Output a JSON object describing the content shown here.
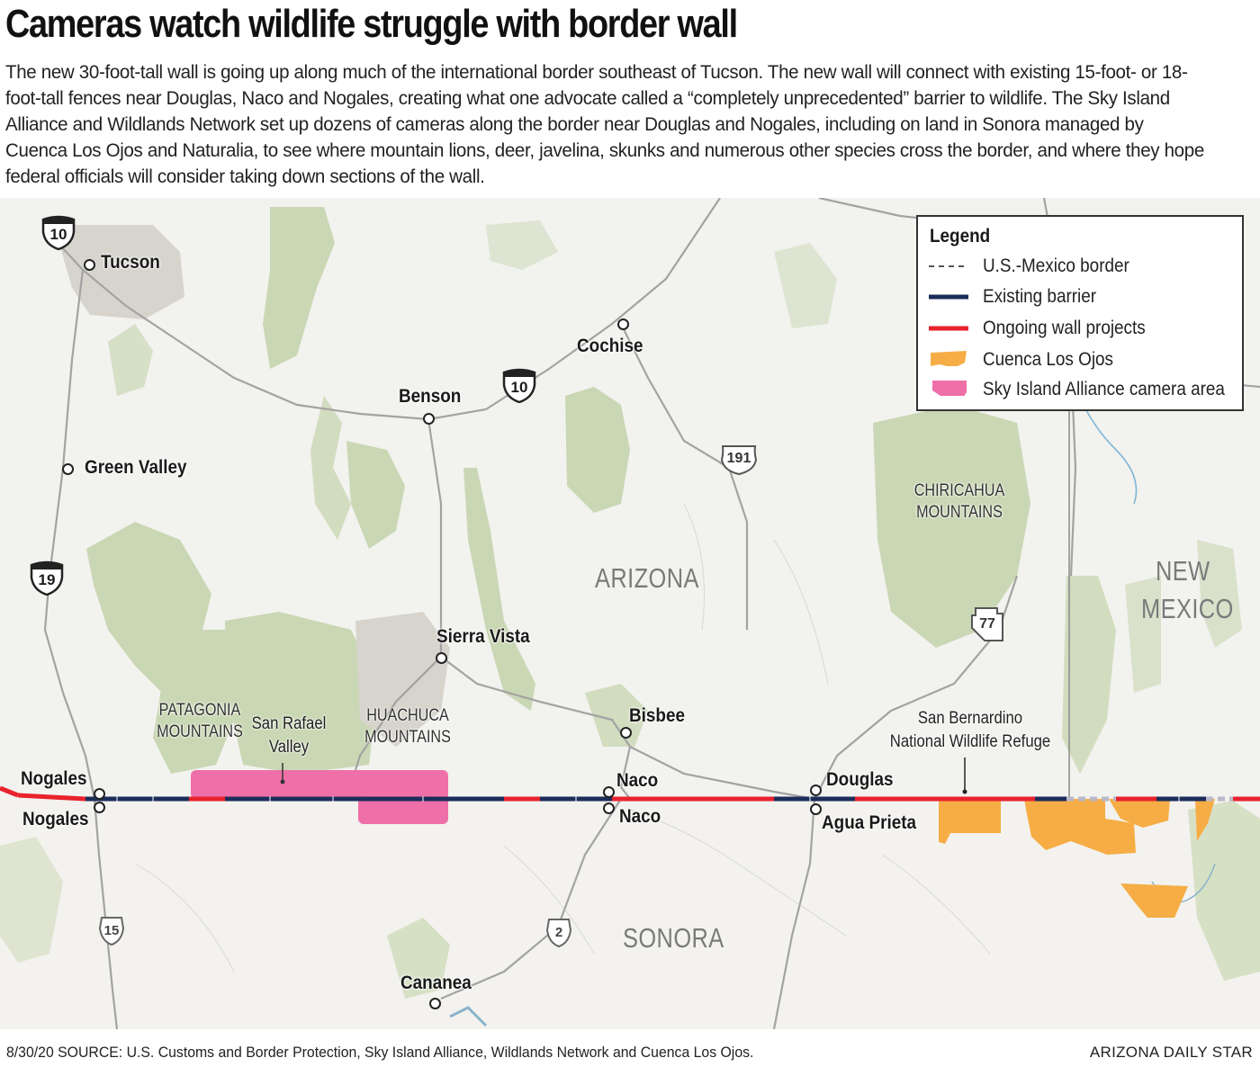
{
  "headline": "Cameras watch wildlife struggle with border wall",
  "intro": "The new 30-foot-tall wall is going up along much of the international border southeast of Tucson. The new wall will connect with existing 15-foot- or 18-foot-tall fences near Douglas, Naco and Nogales, creating what one advocate called a “completely unprecedented” barrier to wildlife. The Sky Island Alliance and Wildlands Network set up dozens of cameras along the border near Douglas and Nogales, including on land in Sonora managed by Cuenca Los Ojos and Naturalia, to see where mountain lions, deer, javelina, skunks and numerous other species cross the border, and where they hope federal officials will consider taking down sections of the wall.",
  "legend": {
    "title": "Legend",
    "items": [
      {
        "label": "U.S.-Mexico border",
        "symbol": "dashed-line",
        "color": "#555555"
      },
      {
        "label": "Existing barrier",
        "symbol": "solid-line",
        "color": "#1c2d5a"
      },
      {
        "label": "Ongoing wall projects",
        "symbol": "solid-line",
        "color": "#e8232d"
      },
      {
        "label": "Cuenca Los Ojos",
        "symbol": "area",
        "color": "#f6ad45"
      },
      {
        "label": "Sky Island Alliance camera area",
        "symbol": "area",
        "color": "#ef6fa8"
      }
    ]
  },
  "places": {
    "tucson": "Tucson",
    "cochise": "Cochise",
    "benson": "Benson",
    "green_valley": "Green Valley",
    "sierra_vista": "Sierra Vista",
    "bisbee": "Bisbee",
    "nogales_us": "Nogales",
    "nogales_mx": "Nogales",
    "naco_us": "Naco",
    "naco_mx": "Naco",
    "douglas": "Douglas",
    "agua_prieta": "Agua Prieta",
    "cananea": "Cananea"
  },
  "regions": {
    "arizona": "ARIZONA",
    "new_mexico_1": "NEW",
    "new_mexico_2": "MEXICO",
    "sonora": "SONORA"
  },
  "mountains": {
    "chiricahua_1": "CHIRICAHUA",
    "chiricahua_2": "MOUNTAINS",
    "patagonia_1": "PATAGONIA",
    "patagonia_2": "MOUNTAINS",
    "huachuca_1": "HUACHUCA",
    "huachuca_2": "MOUNTAINS"
  },
  "areas": {
    "san_rafael_1": "San Rafael",
    "san_rafael_2": "Valley",
    "san_bernardino_1": "San Bernardino",
    "san_bernardino_2": "National Wildlife Refuge"
  },
  "highways": {
    "i10_north": "10",
    "i10_east": "10",
    "i19": "19",
    "us191": "191",
    "az77": "77",
    "mx15": "15",
    "mx2": "2"
  },
  "colors": {
    "existing_barrier": "#1c2d5a",
    "ongoing_wall": "#e8232d",
    "cuenca_los_ojos": "#f6ad45",
    "sky_island": "#ef6fa8",
    "terrain_green": "#c9d6b3",
    "developed_gray": "#d6d3cc"
  },
  "footer": {
    "source": "8/30/20  SOURCE: U.S. Customs and Border Protection, Sky Island Alliance, Wildlands Network and Cuenca Los Ojos.",
    "credit": "ARIZONA DAILY STAR"
  }
}
